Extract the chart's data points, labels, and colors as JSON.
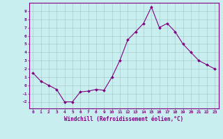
{
  "x": [
    0,
    1,
    2,
    3,
    4,
    5,
    6,
    7,
    8,
    9,
    10,
    11,
    12,
    13,
    14,
    15,
    16,
    17,
    18,
    19,
    20,
    21,
    22,
    23
  ],
  "y": [
    1.5,
    0.5,
    0.0,
    -0.5,
    -2.0,
    -2.0,
    -0.8,
    -0.7,
    -0.5,
    -0.6,
    1.0,
    3.0,
    5.5,
    6.5,
    7.5,
    9.5,
    7.0,
    7.5,
    6.5,
    5.0,
    4.0,
    3.0,
    2.5,
    2.0
  ],
  "line_color": "#800080",
  "marker_color": "#800080",
  "bg_color": "#c8eef0",
  "grid_color": "#aacccc",
  "xlabel": "Windchill (Refroidissement éolien,°C)",
  "ylabel": "",
  "xlim": [
    -0.5,
    23.5
  ],
  "ylim": [
    -2.8,
    10.0
  ],
  "yticks": [
    -2,
    -1,
    0,
    1,
    2,
    3,
    4,
    5,
    6,
    7,
    8,
    9
  ],
  "xticks": [
    0,
    1,
    2,
    3,
    4,
    5,
    6,
    7,
    8,
    9,
    10,
    11,
    12,
    13,
    14,
    15,
    16,
    17,
    18,
    19,
    20,
    21,
    22,
    23
  ],
  "xtick_labels": [
    "0",
    "1",
    "2",
    "3",
    "4",
    "5",
    "6",
    "7",
    "8",
    "9",
    "10",
    "11",
    "12",
    "13",
    "14",
    "15",
    "16",
    "17",
    "18",
    "19",
    "20",
    "21",
    "22",
    "23"
  ],
  "border_color": "#800080",
  "tick_color": "#800080",
  "label_color": "#800080",
  "spine_color": "#800080"
}
